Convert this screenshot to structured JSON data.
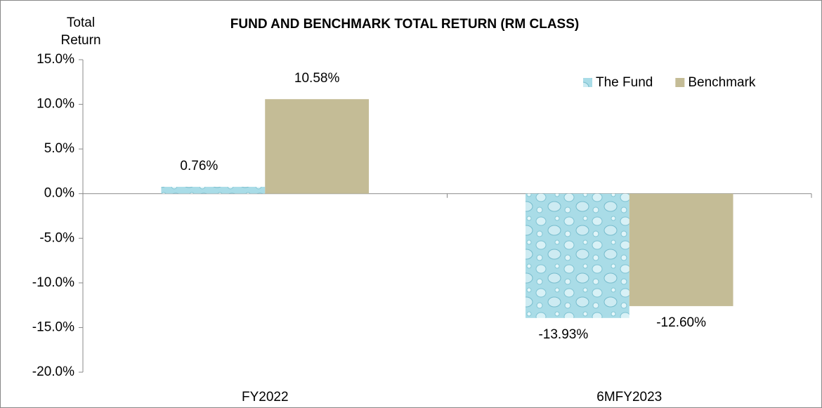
{
  "chart_data": {
    "type": "bar",
    "title": "FUND AND BENCHMARK TOTAL RETURN (RM CLASS)",
    "y_label": "Total Return",
    "categories": [
      "FY2022",
      "6MFY2023"
    ],
    "series": [
      {
        "name": "The Fund",
        "color": "#a9dce7",
        "values": [
          0.76,
          -13.93
        ],
        "value_labels": [
          "0.76%",
          "-13.93%"
        ]
      },
      {
        "name": "Benchmark",
        "color": "#c4bc96",
        "values": [
          10.58,
          -12.6
        ],
        "value_labels": [
          "10.58%",
          "-12.60%"
        ]
      }
    ],
    "ylim": [
      -20,
      15
    ],
    "yticks": [
      {
        "value": -20,
        "label": "-20.0%"
      },
      {
        "value": -15,
        "label": "-15.0%"
      },
      {
        "value": -10,
        "label": "-10.0%"
      },
      {
        "value": -5,
        "label": "-5.0%"
      },
      {
        "value": 0,
        "label": "0.0%"
      },
      {
        "value": 5,
        "label": "5.0%"
      },
      {
        "value": 10,
        "label": "10.0%"
      },
      {
        "value": 15,
        "label": "15.0%"
      }
    ],
    "legend": "top-right"
  }
}
